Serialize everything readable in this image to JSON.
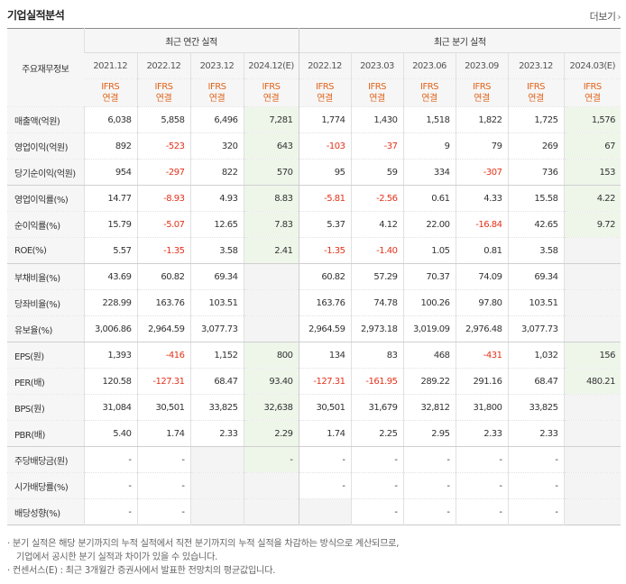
{
  "header": {
    "title": "기업실적분석",
    "more_label": "더보기",
    "more_arrow": "›"
  },
  "table": {
    "corner_label": "주요재무정보",
    "annual_header": "최근 연간 실적",
    "quarterly_header": "최근 분기 실적",
    "periods": [
      "2021.12",
      "2022.12",
      "2023.12",
      "2024.12(E)",
      "2022.12",
      "2023.03",
      "2023.06",
      "2023.09",
      "2023.12",
      "2024.03(E)"
    ],
    "basis_top": "IFRS",
    "basis_bottom": "연결",
    "rows": [
      {
        "label": "매출액(억원)",
        "values": [
          "6,038",
          "5,858",
          "6,496",
          "7,281",
          "1,774",
          "1,430",
          "1,518",
          "1,822",
          "1,725",
          "1,576"
        ]
      },
      {
        "label": "영업이익(억원)",
        "values": [
          "892",
          "-523",
          "320",
          "643",
          "-103",
          "-37",
          "9",
          "79",
          "269",
          "67"
        ]
      },
      {
        "label": "당기순이익(억원)",
        "values": [
          "954",
          "-297",
          "822",
          "570",
          "95",
          "59",
          "334",
          "-307",
          "736",
          "153"
        ]
      },
      {
        "label": "영업이익률(%)",
        "values": [
          "14.77",
          "-8.93",
          "4.93",
          "8.83",
          "-5.81",
          "-2.56",
          "0.61",
          "4.33",
          "15.58",
          "4.22"
        ]
      },
      {
        "label": "순이익률(%)",
        "values": [
          "15.79",
          "-5.07",
          "12.65",
          "7.83",
          "5.37",
          "4.12",
          "22.00",
          "-16.84",
          "42.65",
          "9.72"
        ]
      },
      {
        "label": "ROE(%)",
        "values": [
          "5.57",
          "-1.35",
          "3.58",
          "2.41",
          "-1.35",
          "-1.40",
          "1.05",
          "0.81",
          "3.58",
          ""
        ]
      },
      {
        "label": "부채비율(%)",
        "values": [
          "43.69",
          "60.82",
          "69.34",
          "",
          "60.82",
          "57.29",
          "70.37",
          "74.09",
          "69.34",
          ""
        ]
      },
      {
        "label": "당좌비율(%)",
        "values": [
          "228.99",
          "163.76",
          "103.51",
          "",
          "163.76",
          "74.78",
          "100.26",
          "97.80",
          "103.51",
          ""
        ]
      },
      {
        "label": "유보율(%)",
        "values": [
          "3,006.86",
          "2,964.59",
          "3,077.73",
          "",
          "2,964.59",
          "2,973.18",
          "3,019.09",
          "2,976.48",
          "3,077.73",
          ""
        ]
      },
      {
        "label": "EPS(원)",
        "values": [
          "1,393",
          "-416",
          "1,152",
          "800",
          "134",
          "83",
          "468",
          "-431",
          "1,032",
          "156"
        ]
      },
      {
        "label": "PER(배)",
        "values": [
          "120.58",
          "-127.31",
          "68.47",
          "93.40",
          "-127.31",
          "-161.95",
          "289.22",
          "291.16",
          "68.47",
          "480.21"
        ]
      },
      {
        "label": "BPS(원)",
        "values": [
          "31,084",
          "30,501",
          "33,825",
          "32,638",
          "30,501",
          "31,679",
          "32,812",
          "31,800",
          "33,825",
          ""
        ]
      },
      {
        "label": "PBR(배)",
        "values": [
          "5.40",
          "1.74",
          "2.33",
          "2.29",
          "1.74",
          "2.25",
          "2.95",
          "2.33",
          "2.33",
          ""
        ]
      },
      {
        "label": "주당배당금(원)",
        "values": [
          "-",
          "-",
          "",
          "-",
          "-",
          "-",
          "-",
          "-",
          "-",
          ""
        ]
      },
      {
        "label": "시가배당률(%)",
        "values": [
          "-",
          "-",
          "",
          "",
          "-",
          "-",
          "-",
          "-",
          "-",
          ""
        ]
      },
      {
        "label": "배당성향(%)",
        "values": [
          "-",
          "-",
          "",
          "",
          "",
          "-",
          "-",
          "-",
          "-",
          ""
        ]
      }
    ]
  },
  "notes": {
    "line1": "· 분기 실적은 해당 분기까지의 누적 실적에서 직전 분기까지의 누적 실적을 차감하는 방식으로 계산되므로,",
    "line2": "기업에서 공시한 분기 실적과 차이가 있을 수 있습니다.",
    "line3": "· 컨센서스(E) : 최근 3개월간 증권사에서 발표한 전망치의 평균값입니다."
  },
  "colors": {
    "negative": "#e4321a",
    "basis": "#e0641c",
    "estimate_bg": "#eef6ea",
    "header_bg": "#f6f6f6"
  }
}
